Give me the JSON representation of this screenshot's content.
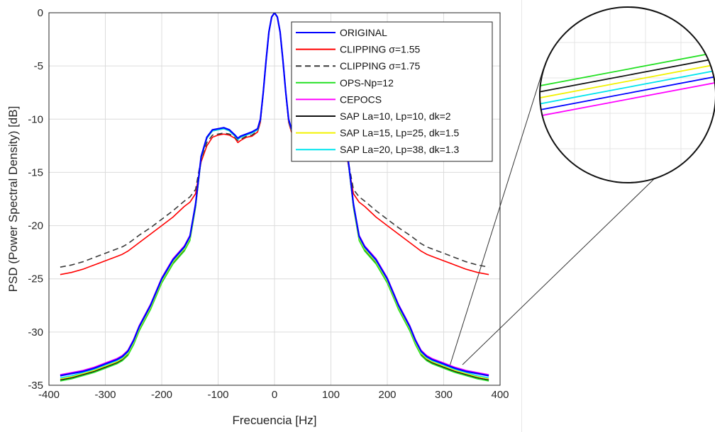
{
  "chart_data": {
    "type": "line",
    "xlabel": "Frecuencia [Hz]",
    "ylabel": "PSD (Power Spectral Density) [dB]",
    "xlim": [
      -400,
      400
    ],
    "ylim": [
      -35,
      0
    ],
    "xticks": [
      -400,
      -300,
      -200,
      -100,
      0,
      100,
      200,
      300,
      400
    ],
    "yticks": [
      0,
      -5,
      -10,
      -15,
      -20,
      -25,
      -30,
      -35
    ],
    "grid": true,
    "legend_position": "top-right",
    "inset": "magnified view of the curves near 300 Hz, about -33 dB",
    "x": [
      0,
      5,
      10,
      15,
      20,
      25,
      30,
      40,
      50,
      60,
      65,
      70,
      80,
      90,
      100,
      110,
      120,
      130,
      140,
      150,
      160,
      180,
      200,
      220,
      240,
      250,
      260,
      270,
      280,
      300,
      320,
      340,
      360,
      380
    ],
    "series": [
      {
        "name": "ORIGINAL",
        "color": "#0000ff",
        "dash": "solid",
        "values": [
          0,
          -0.4,
          -1.8,
          -4.5,
          -7.5,
          -10.0,
          -10.9,
          -11.2,
          -11.4,
          -11.6,
          -11.8,
          -11.5,
          -11.0,
          -10.8,
          -10.9,
          -11.0,
          -11.7,
          -13.5,
          -18.0,
          -21.0,
          -22.0,
          -23.2,
          -25.0,
          -27.5,
          -29.5,
          -30.8,
          -31.8,
          -32.3,
          -32.6,
          -33.0,
          -33.4,
          -33.7,
          -33.9,
          -34.1
        ]
      },
      {
        "name": "CLIPPING σ=1.55",
        "color": "#ff0000",
        "dash": "solid",
        "values": [
          0,
          -0.4,
          -1.8,
          -4.5,
          -7.5,
          -10.3,
          -11.2,
          -11.6,
          -11.7,
          -12.0,
          -12.2,
          -11.8,
          -11.5,
          -11.4,
          -11.5,
          -11.7,
          -12.5,
          -14.0,
          -17.0,
          -17.8,
          -18.2,
          -19.2,
          -20.0,
          -20.8,
          -21.6,
          -22.0,
          -22.4,
          -22.7,
          -22.9,
          -23.3,
          -23.7,
          -24.1,
          -24.4,
          -24.6
        ]
      },
      {
        "name": "CLIPPING σ=1.75",
        "color": "#3a3a3a",
        "dash": "dashed",
        "values": [
          0,
          -0.4,
          -1.8,
          -4.5,
          -7.5,
          -10.2,
          -11.1,
          -11.5,
          -11.6,
          -11.9,
          -12.0,
          -11.7,
          -11.4,
          -11.3,
          -11.4,
          -11.5,
          -12.2,
          -13.7,
          -16.6,
          -17.3,
          -17.7,
          -18.6,
          -19.4,
          -20.2,
          -20.9,
          -21.3,
          -21.7,
          -22.0,
          -22.2,
          -22.6,
          -23.0,
          -23.4,
          -23.7,
          -23.9
        ]
      },
      {
        "name": "OPS-Np=12",
        "color": "#22e022",
        "dash": "solid",
        "values": [
          0,
          -0.4,
          -1.8,
          -4.5,
          -7.5,
          -10.1,
          -11.0,
          -11.3,
          -11.5,
          -11.7,
          -11.9,
          -11.6,
          -11.1,
          -10.9,
          -11.0,
          -11.1,
          -11.8,
          -13.7,
          -18.3,
          -21.4,
          -22.4,
          -23.6,
          -25.4,
          -27.9,
          -29.9,
          -31.2,
          -32.2,
          -32.7,
          -33.0,
          -33.4,
          -33.8,
          -34.1,
          -34.4,
          -34.6
        ]
      },
      {
        "name": "CEPOCS",
        "color": "#ff00ff",
        "dash": "solid",
        "values": [
          0,
          -0.4,
          -1.8,
          -4.5,
          -7.5,
          -10.0,
          -10.9,
          -11.2,
          -11.4,
          -11.6,
          -11.8,
          -11.5,
          -11.0,
          -10.8,
          -10.9,
          -11.0,
          -11.7,
          -13.5,
          -17.9,
          -20.9,
          -21.9,
          -23.1,
          -24.9,
          -27.4,
          -29.4,
          -30.7,
          -31.7,
          -32.2,
          -32.5,
          -32.9,
          -33.3,
          -33.6,
          -33.8,
          -34.0
        ]
      },
      {
        "name": "SAP La=10, Lp=10, dk=2",
        "color": "#111111",
        "dash": "solid",
        "values": [
          0,
          -0.4,
          -1.8,
          -4.5,
          -7.5,
          -10.1,
          -11.0,
          -11.3,
          -11.5,
          -11.7,
          -11.9,
          -11.6,
          -11.1,
          -10.9,
          -11.0,
          -11.1,
          -11.8,
          -13.6,
          -18.2,
          -21.3,
          -22.3,
          -23.5,
          -25.3,
          -27.8,
          -29.8,
          -31.1,
          -32.1,
          -32.6,
          -32.9,
          -33.3,
          -33.7,
          -34.0,
          -34.3,
          -34.5
        ]
      },
      {
        "name": "SAP La=15, Lp=25, dk=1.5",
        "color": "#f2f200",
        "dash": "solid",
        "values": [
          0,
          -0.4,
          -1.8,
          -4.5,
          -7.5,
          -10.1,
          -11.0,
          -11.3,
          -11.5,
          -11.7,
          -11.9,
          -11.6,
          -11.1,
          -10.9,
          -11.0,
          -11.1,
          -11.8,
          -13.6,
          -18.1,
          -21.2,
          -22.2,
          -23.4,
          -25.2,
          -27.7,
          -29.7,
          -31.0,
          -32.0,
          -32.5,
          -32.8,
          -33.2,
          -33.6,
          -33.9,
          -34.2,
          -34.4
        ]
      },
      {
        "name": "SAP La=20, Lp=38, dk=1.3",
        "color": "#00e5ee",
        "dash": "solid",
        "values": [
          0,
          -0.4,
          -1.8,
          -4.5,
          -7.5,
          -10.1,
          -11.0,
          -11.3,
          -11.5,
          -11.7,
          -11.9,
          -11.6,
          -11.1,
          -10.9,
          -11.0,
          -11.1,
          -11.8,
          -13.6,
          -18.0,
          -21.1,
          -22.1,
          -23.3,
          -25.1,
          -27.6,
          -29.6,
          -30.9,
          -31.9,
          -32.4,
          -32.7,
          -33.1,
          -33.5,
          -33.8,
          -34.1,
          -34.3
        ]
      }
    ]
  }
}
